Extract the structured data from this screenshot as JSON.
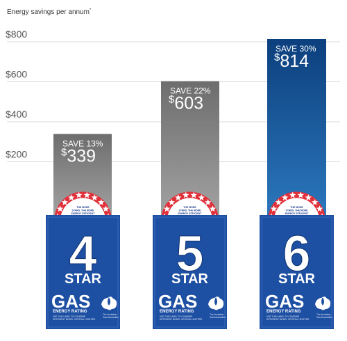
{
  "chart_data": {
    "type": "bar",
    "title": "",
    "ylabel": "Energy savings per annum",
    "ylabel_marker": "*",
    "xlabel": "",
    "ylim": [
      0,
      880
    ],
    "yticks": [
      {
        "value": 200,
        "label": "$200"
      },
      {
        "value": 400,
        "label": "$400"
      },
      {
        "value": 600,
        "label": "$600"
      },
      {
        "value": 800,
        "label": "$800"
      }
    ],
    "grid": true,
    "categories": [
      "4 STAR",
      "5 STAR",
      "6 STAR"
    ],
    "values": [
      339,
      603,
      814
    ],
    "bars": [
      {
        "value": 339,
        "save_label": "SAVE 13%",
        "currency": "$",
        "amount": "339",
        "star_number": "4",
        "star_word": "STAR",
        "color": "#888888"
      },
      {
        "value": 603,
        "save_label": "SAVE 22%",
        "currency": "$",
        "amount": "603",
        "star_number": "5",
        "star_word": "STAR",
        "color": "#888888"
      },
      {
        "value": 814,
        "save_label": "SAVE 30%",
        "currency": "$",
        "amount": "814",
        "star_number": "6",
        "star_word": "STAR",
        "color": "#1d5fa5"
      }
    ]
  },
  "label": {
    "gas": "GAS",
    "energy_rating": "ENERGY RATING",
    "fine_print": [
      "USE THIS LABEL TO COMPARE",
      "DIFFERENT MODEL CENTRAL HEATERS"
    ],
    "association": [
      "The Australian",
      "Gas Association"
    ],
    "dial_text": [
      "THE MORE",
      "STARS, THE MORE",
      "ENERGY EFFICIENT"
    ]
  },
  "colors": {
    "label_blue": "#1d4fa3",
    "dark_blue": "#0f3270",
    "gray_top": "#6d6d6d",
    "gray_bottom": "#a3a3a3",
    "blue_top": "#0c3f7d",
    "blue_bottom": "#2c78bd",
    "star_red": "#e0303a",
    "grid": "#d9d9d9"
  }
}
